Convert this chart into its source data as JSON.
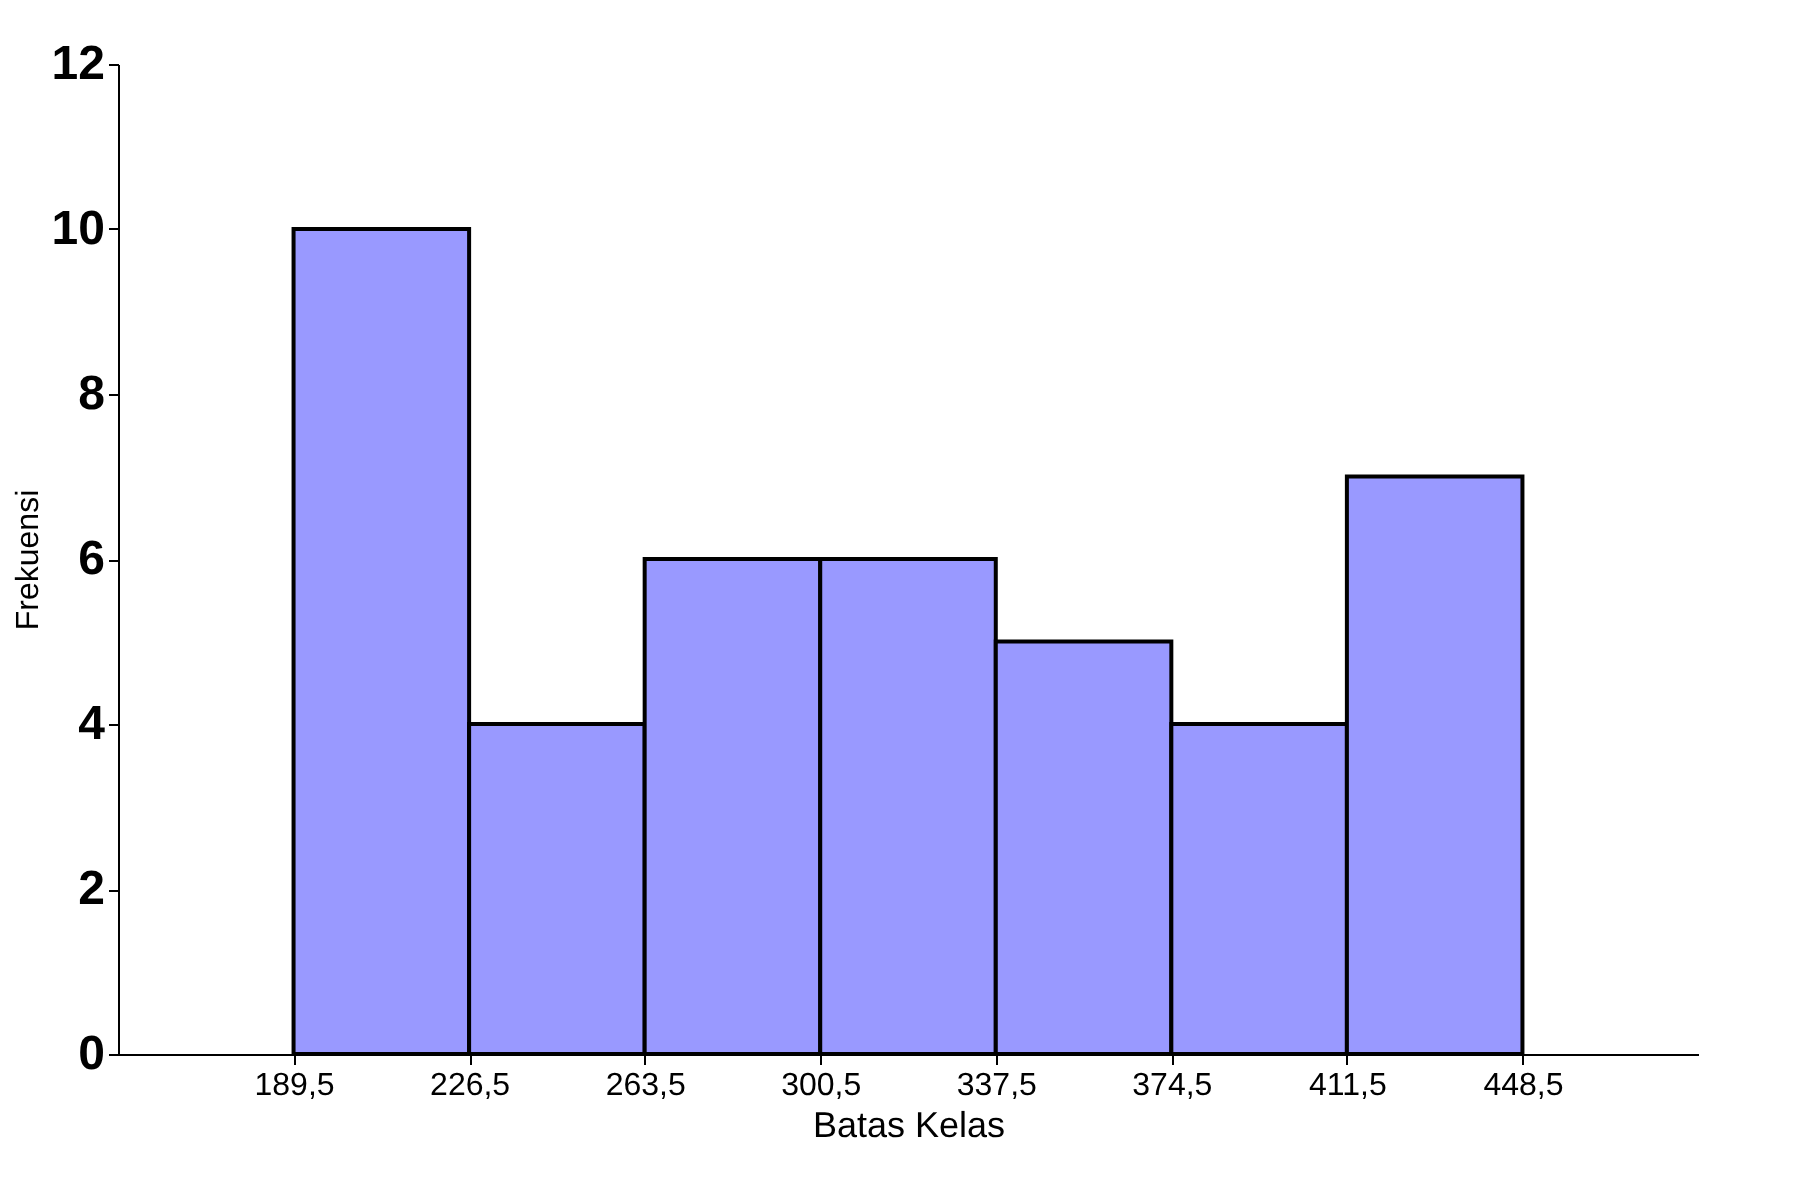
{
  "chart_data": {
    "type": "histogram",
    "xlabel": "Batas Kelas",
    "ylabel": "Frekuensi",
    "bins": [
      189.5,
      226.5,
      263.5,
      300.5,
      337.5,
      374.5,
      411.5,
      448.5
    ],
    "values": [
      10,
      4,
      6,
      6,
      5,
      4,
      7
    ],
    "color": "#9999ff",
    "xlim": [
      152.5,
      485.5
    ],
    "xticks": [
      {
        "value": 189.5,
        "label": "189,5"
      },
      {
        "value": 226.5,
        "label": "226,5"
      },
      {
        "value": 263.5,
        "label": "263,5"
      },
      {
        "value": 300.5,
        "label": "300,5"
      },
      {
        "value": 337.5,
        "label": "337,5"
      },
      {
        "value": 374.5,
        "label": "374,5"
      },
      {
        "value": 411.5,
        "label": "411,5"
      },
      {
        "value": 448.5,
        "label": "448,5"
      }
    ],
    "ylim": [
      0,
      12
    ],
    "yticks": [
      0,
      2,
      4,
      6,
      8,
      10,
      12
    ],
    "grid": false
  }
}
